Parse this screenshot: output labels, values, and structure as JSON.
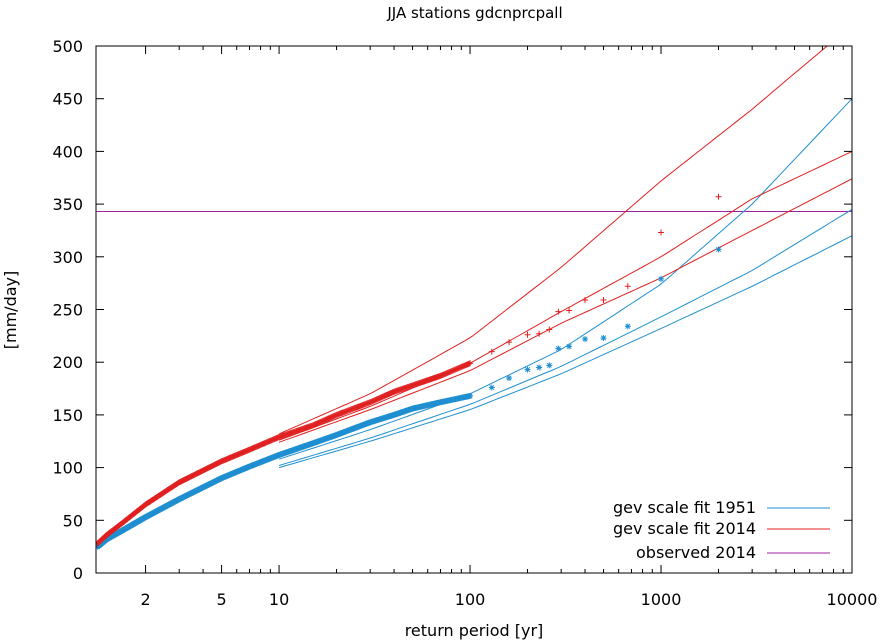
{
  "chart_data": {
    "type": "scatter",
    "title": "JJA stations gdcnprcpall",
    "xlabel": "return period [yr]",
    "ylabel": "[mm/day]",
    "xscale": "log",
    "xlim": [
      1.1,
      10000
    ],
    "ylim": [
      0,
      500
    ],
    "xticks": [
      2,
      5,
      10,
      100,
      1000,
      10000
    ],
    "xtick_labels": [
      "2",
      "5",
      "10",
      "100",
      "1000",
      "10000"
    ],
    "yticks": [
      0,
      50,
      100,
      150,
      200,
      250,
      300,
      350,
      400,
      450,
      500
    ],
    "ytick_labels": [
      "0",
      "50",
      "100",
      "150",
      "200",
      "250",
      "300",
      "350",
      "400",
      "450",
      "500"
    ],
    "grid": false,
    "legend_position": "bottom-right",
    "legend": [
      {
        "label": "gev scale fit 1951",
        "color": "#1f8fd0"
      },
      {
        "label": "gev scale fit 2014",
        "color": "#e02020"
      },
      {
        "label": "observed 2014",
        "color": "#a020a0"
      }
    ],
    "observed_2014": 343,
    "series": [
      {
        "name": "gev scale fit 1951",
        "color": "#1f8fd0",
        "fit_lines": [
          {
            "x": [
              10,
              30,
              100,
              300,
              1000,
              3000,
              10000
            ],
            "y": [
              108,
              136,
              170,
              212,
              274,
              350,
              450
            ]
          },
          {
            "x": [
              10,
              30,
              100,
              300,
              1000,
              3000,
              10000
            ],
            "y": [
              102,
              128,
              160,
              196,
              243,
              287,
              345
            ]
          },
          {
            "x": [
              10,
              30,
              100,
              300,
              1000,
              3000,
              10000
            ],
            "y": [
              100,
              125,
              155,
              189,
              232,
              272,
              320
            ]
          }
        ],
        "points": {
          "x": [
            1.12,
            1.25,
            1.5,
            2,
            3,
            5,
            7,
            10,
            15,
            20,
            30,
            40,
            50,
            70,
            100,
            130,
            160,
            200,
            230,
            260,
            290,
            330,
            400,
            500,
            670,
            1000,
            2000
          ],
          "y": [
            25,
            32,
            40,
            53,
            70,
            90,
            101,
            112,
            123,
            131,
            143,
            150,
            156,
            162,
            168,
            176,
            185,
            193,
            195,
            197,
            213,
            215,
            222,
            223,
            234,
            279,
            307
          ]
        }
      },
      {
        "name": "gev scale fit 2014",
        "color": "#e02020",
        "fit_lines": [
          {
            "x": [
              10,
              30,
              100,
              300,
              1000,
              3000,
              10000
            ],
            "y": [
              132,
              170,
              223,
              290,
              372,
              440,
              520
            ]
          },
          {
            "x": [
              10,
              30,
              100,
              300,
              1000,
              3000,
              10000
            ],
            "y": [
              126,
              158,
              199,
              248,
              300,
              355,
              400
            ]
          },
          {
            "x": [
              10,
              30,
              100,
              300,
              1000,
              3000,
              10000
            ],
            "y": [
              124,
              155,
              192,
              237,
              280,
              325,
              374
            ]
          }
        ],
        "points": {
          "x": [
            1.12,
            1.25,
            1.5,
            2,
            3,
            5,
            7,
            10,
            15,
            20,
            30,
            40,
            50,
            70,
            100,
            130,
            160,
            200,
            230,
            260,
            290,
            330,
            400,
            500,
            670,
            1000,
            2000
          ],
          "y": [
            28,
            36,
            47,
            65,
            86,
            106,
            117,
            129,
            140,
            150,
            162,
            172,
            178,
            187,
            199,
            210,
            219,
            226,
            227,
            231,
            248,
            249,
            259,
            259,
            272,
            323,
            357
          ]
        }
      }
    ]
  }
}
